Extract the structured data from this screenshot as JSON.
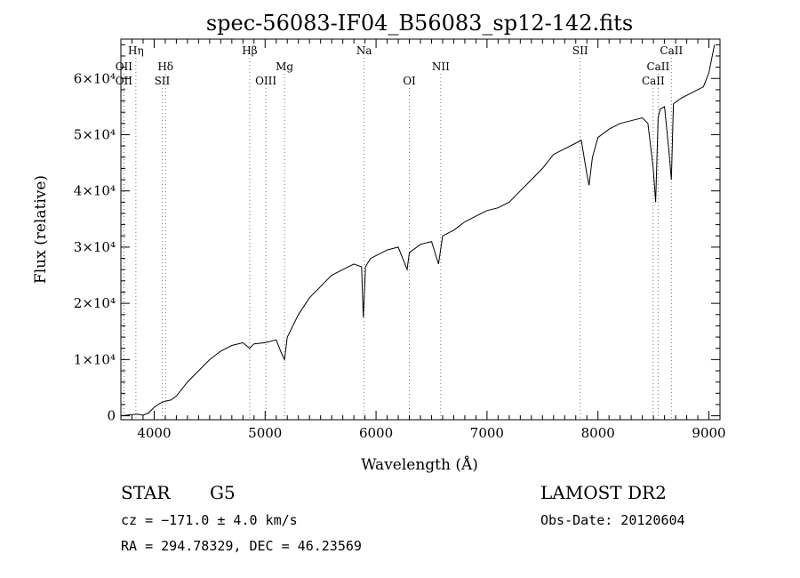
{
  "chart_data": {
    "type": "line",
    "title": "spec-56083-IF04_B56083_sp12-142.fits",
    "xlabel": "Wavelength (Å)",
    "ylabel": "Flux (relative)",
    "xlim": [
      3700,
      9100
    ],
    "ylim": [
      -700,
      67000
    ],
    "x_ticks": [
      4000,
      5000,
      6000,
      7000,
      8000,
      9000
    ],
    "y_ticks": [
      {
        "value": 0,
        "label": "0"
      },
      {
        "value": 10000,
        "label": "1×10⁴"
      },
      {
        "value": 20000,
        "label": "2×10⁴"
      },
      {
        "value": 30000,
        "label": "3×10⁴"
      },
      {
        "value": 40000,
        "label": "4×10⁴"
      },
      {
        "value": 50000,
        "label": "5×10⁴"
      },
      {
        "value": 60000,
        "label": "6×10⁴"
      }
    ],
    "grid": false,
    "line_color": "#000000",
    "marker_line_color": "#777777",
    "series": [
      {
        "x": [
          3700,
          3800,
          3850,
          3900,
          3950,
          4000,
          4050,
          4100,
          4150,
          4200,
          4300,
          4400,
          4500,
          4600,
          4700,
          4800,
          4860,
          4900,
          5000,
          5100,
          5150,
          5175,
          5200,
          5300,
          5400,
          5500,
          5600,
          5700,
          5800,
          5870,
          5885,
          5895,
          5905,
          5950,
          6000,
          6100,
          6200,
          6280,
          6300,
          6400,
          6500,
          6563,
          6600,
          6700,
          6800,
          6900,
          7000,
          7100,
          7200,
          7300,
          7400,
          7500,
          7600,
          7700,
          7800,
          7850,
          7900,
          7920,
          7950,
          8000,
          8100,
          8200,
          8300,
          8400,
          8450,
          8498,
          8520,
          8542,
          8560,
          8600,
          8640,
          8662,
          8680,
          8750,
          8850,
          8950,
          9000,
          9050
        ],
        "values": [
          0,
          200,
          300,
          100,
          500,
          1500,
          2200,
          2600,
          2800,
          3500,
          6000,
          8000,
          10000,
          11500,
          12500,
          13000,
          12000,
          12800,
          13000,
          13500,
          11000,
          10000,
          14000,
          18000,
          21000,
          23000,
          25000,
          26000,
          27000,
          26500,
          17500,
          22000,
          26500,
          28000,
          28500,
          29500,
          30000,
          26000,
          29000,
          30500,
          31000,
          27000,
          32000,
          33000,
          34500,
          35500,
          36500,
          37000,
          38000,
          40000,
          42000,
          44000,
          46500,
          47500,
          48500,
          49000,
          43000,
          41000,
          46000,
          49500,
          51000,
          52000,
          52500,
          53000,
          52000,
          44000,
          38000,
          53000,
          54500,
          55000,
          47000,
          42000,
          55500,
          56500,
          57500,
          58500,
          61000,
          66000
        ]
      }
    ],
    "spectral_lines": [
      {
        "name": "Hη",
        "wavelength": 3835,
        "row": 0
      },
      {
        "name": "OII",
        "wavelength": 3727,
        "row": 1
      },
      {
        "name": "OII",
        "wavelength": 3727,
        "row": 2
      },
      {
        "name": "Hδ",
        "wavelength": 4102,
        "row": 1
      },
      {
        "name": "SII",
        "wavelength": 4072,
        "row": 2
      },
      {
        "name": "Hβ",
        "wavelength": 4861,
        "row": 0
      },
      {
        "name": "OIII",
        "wavelength": 5007,
        "row": 2
      },
      {
        "name": "Mg",
        "wavelength": 5175,
        "row": 1
      },
      {
        "name": "Na",
        "wavelength": 5893,
        "row": 0
      },
      {
        "name": "OI",
        "wavelength": 6300,
        "row": 2
      },
      {
        "name": "NII",
        "wavelength": 6583,
        "row": 1
      },
      {
        "name": "SII",
        "wavelength": 7840,
        "row": 0
      },
      {
        "name": "CaII",
        "wavelength": 8662,
        "row": 0
      },
      {
        "name": "CaII",
        "wavelength": 8542,
        "row": 1
      },
      {
        "name": "CaII",
        "wavelength": 8498,
        "row": 2
      }
    ]
  },
  "footer": {
    "object_type": "STAR",
    "subclass": "G5",
    "survey": "LAMOST DR2",
    "cz": "cz = −171.0 ± 4.0 km/s",
    "obs_date": "Obs-Date: 20120604",
    "coords": "RA = 294.78329, DEC =  46.23569"
  }
}
